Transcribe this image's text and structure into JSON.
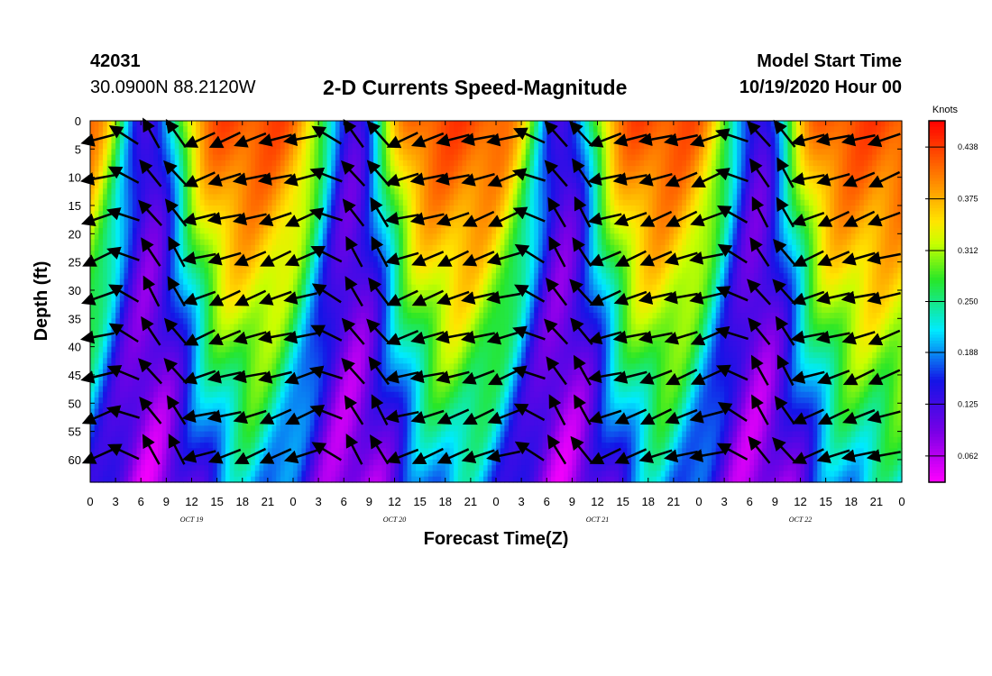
{
  "header": {
    "station_id": "42031",
    "station_location": "30.0900N 88.2120W",
    "title": "2-D Currents Speed-Magnitude",
    "model_start_label": "Model Start Time",
    "model_start_value": "10/19/2020 Hour 00"
  },
  "chart_data": {
    "type": "heatmap",
    "title": "2-D Currents Speed-Magnitude",
    "xlabel": "Forecast Time(Z)",
    "ylabel": "Depth (ft)",
    "x_range_hours": [
      0,
      96
    ],
    "y_range_ft": [
      0,
      64
    ],
    "y_inverted": true,
    "x_tick_labels": [
      "0",
      "3",
      "6",
      "9",
      "12",
      "15",
      "18",
      "21",
      "0",
      "3",
      "6",
      "9",
      "12",
      "15",
      "18",
      "21",
      "0",
      "3",
      "6",
      "9",
      "12",
      "15",
      "18",
      "21",
      "0",
      "3",
      "6",
      "9",
      "12",
      "15",
      "18",
      "21",
      "0"
    ],
    "y_tick_labels": [
      "0",
      "5",
      "10",
      "15",
      "20",
      "25",
      "30",
      "35",
      "40",
      "45",
      "50",
      "55",
      "60"
    ],
    "date_labels": [
      {
        "label": "OCT 19",
        "hour": 12
      },
      {
        "label": "OCT 20",
        "hour": 36
      },
      {
        "label": "OCT 21",
        "hour": 60
      },
      {
        "label": "OCT 22",
        "hour": 84
      }
    ],
    "colorbar": {
      "unit": "Knots",
      "levels": [
        "0.062",
        "0.125",
        "0.188",
        "0.250",
        "0.312",
        "0.375",
        "0.438"
      ],
      "min": 0.03,
      "max": 0.47
    },
    "speed_model": {
      "low_speed_centers_hours": [
        7,
        31,
        56,
        79
      ],
      "description": "speed minima near slack tides, maxima mid-cycle near surface"
    }
  }
}
